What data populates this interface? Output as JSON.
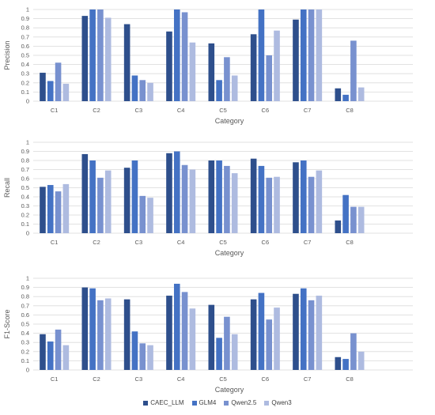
{
  "chart_data": [
    {
      "type": "bar",
      "ylabel": "Precision",
      "xlabel": "Category",
      "categories": [
        "C1",
        "C2",
        "C3",
        "C4",
        "C5",
        "C6",
        "C7",
        "C8"
      ],
      "ylim": [
        0,
        1
      ],
      "yticks": [
        "0",
        "0.1",
        "0.2",
        "0.3",
        "0.4",
        "0.5",
        "0.6",
        "0.7",
        "0.8",
        "0.9",
        "1"
      ],
      "grid": true,
      "series": [
        {
          "name": "CAEC_LLM",
          "values": [
            0.31,
            0.93,
            0.84,
            0.76,
            0.63,
            0.73,
            0.89,
            0.14
          ]
        },
        {
          "name": "GLM4",
          "values": [
            0.22,
            1.0,
            0.28,
            1.0,
            0.23,
            1.0,
            1.0,
            0.07
          ]
        },
        {
          "name": "Qwen2.5",
          "values": [
            0.42,
            1.0,
            0.23,
            0.97,
            0.48,
            0.5,
            1.0,
            0.66
          ]
        },
        {
          "name": "Qwen3",
          "values": [
            0.19,
            0.91,
            0.2,
            0.64,
            0.28,
            0.77,
            1.0,
            0.15
          ]
        }
      ]
    },
    {
      "type": "bar",
      "ylabel": "Recall",
      "xlabel": "Category",
      "categories": [
        "C1",
        "C2",
        "C3",
        "C4",
        "C5",
        "C6",
        "C7",
        "C8"
      ],
      "ylim": [
        0,
        1
      ],
      "yticks": [
        "0",
        "0.1",
        "0.2",
        "0.3",
        "0.4",
        "0.5",
        "0.6",
        "0.7",
        "0.8",
        "0.9",
        "1"
      ],
      "grid": true,
      "series": [
        {
          "name": "CAEC_LLM",
          "values": [
            0.51,
            0.87,
            0.72,
            0.88,
            0.8,
            0.82,
            0.78,
            0.14
          ]
        },
        {
          "name": "GLM4",
          "values": [
            0.53,
            0.8,
            0.8,
            0.9,
            0.8,
            0.74,
            0.8,
            0.42
          ]
        },
        {
          "name": "Qwen2.5",
          "values": [
            0.46,
            0.61,
            0.41,
            0.75,
            0.74,
            0.61,
            0.62,
            0.29
          ]
        },
        {
          "name": "Qwen3",
          "values": [
            0.54,
            0.69,
            0.39,
            0.7,
            0.66,
            0.62,
            0.69,
            0.29
          ]
        }
      ]
    },
    {
      "type": "bar",
      "ylabel": "F1-Score",
      "xlabel": "Category",
      "categories": [
        "C1",
        "C2",
        "C3",
        "C4",
        "C5",
        "C6",
        "C7",
        "C8"
      ],
      "ylim": [
        0,
        1
      ],
      "yticks": [
        "0",
        "0.1",
        "0.2",
        "0.3",
        "0.4",
        "0.5",
        "0.6",
        "0.7",
        "0.8",
        "0.9",
        "1"
      ],
      "grid": true,
      "series": [
        {
          "name": "CAEC_LLM",
          "values": [
            0.39,
            0.9,
            0.77,
            0.81,
            0.71,
            0.77,
            0.83,
            0.14
          ]
        },
        {
          "name": "GLM4",
          "values": [
            0.31,
            0.89,
            0.42,
            0.94,
            0.35,
            0.84,
            0.89,
            0.12
          ]
        },
        {
          "name": "Qwen2.5",
          "values": [
            0.44,
            0.76,
            0.29,
            0.85,
            0.58,
            0.55,
            0.76,
            0.4
          ]
        },
        {
          "name": "Qwen3",
          "values": [
            0.27,
            0.78,
            0.27,
            0.67,
            0.39,
            0.68,
            0.81,
            0.2
          ]
        }
      ]
    }
  ],
  "legend": {
    "placement": "bottom",
    "items": [
      "CAEC_LLM",
      "GLM4",
      "Qwen2.5",
      "Qwen3"
    ]
  },
  "colors": [
    "#2E4F8C",
    "#4472C4",
    "#7891CF",
    "#AEBBE0"
  ]
}
